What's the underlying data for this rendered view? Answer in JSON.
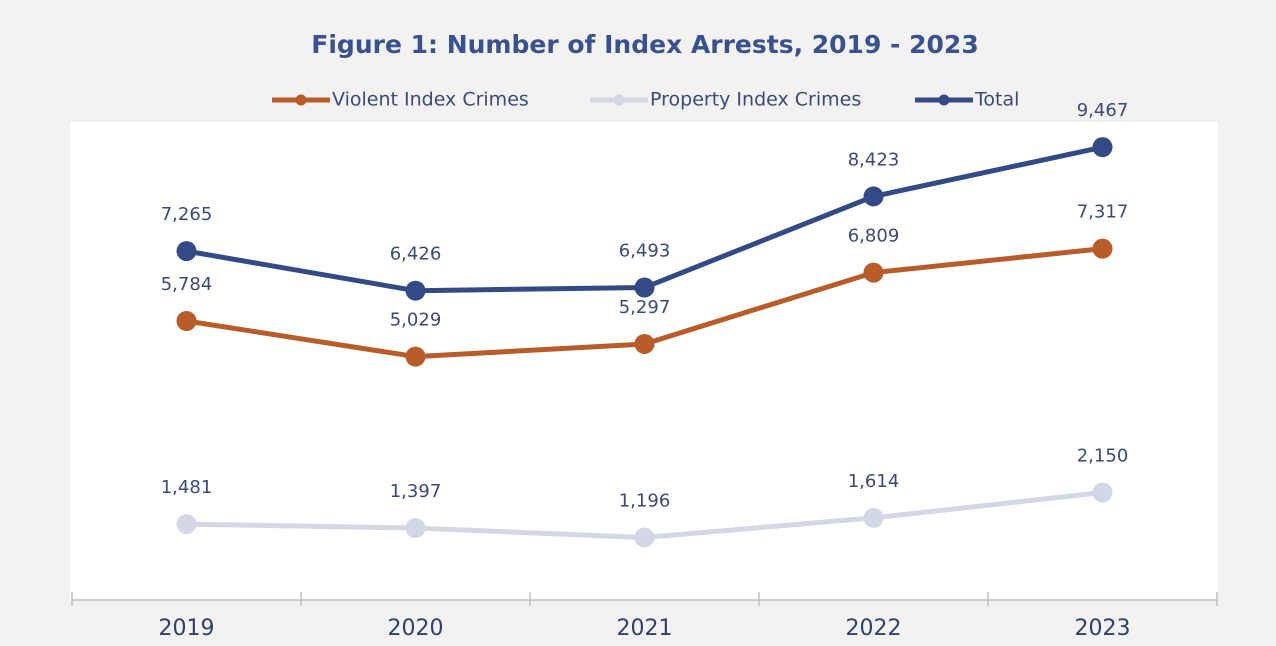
{
  "chart_data": {
    "type": "line",
    "title": "Figure 1: Number of Index Arrests, 2019 - 2023",
    "categories": [
      "2019",
      "2020",
      "2021",
      "2022",
      "2023"
    ],
    "series": [
      {
        "name": "Violent Index Crimes",
        "color": "#b85c2a",
        "values": [
          5784,
          5029,
          5297,
          6809,
          7317
        ],
        "value_labels": [
          "5,784",
          "5,029",
          "5,297",
          "6,809",
          "7,317"
        ]
      },
      {
        "name": "Property Index Crimes",
        "color": "#d3d8e6",
        "values": [
          1481,
          1397,
          1196,
          1614,
          2150
        ],
        "value_labels": [
          "1,481",
          "1,397",
          "1,196",
          "1,614",
          "2,150"
        ]
      },
      {
        "name": "Total",
        "color": "#344a84",
        "values": [
          7265,
          6426,
          6493,
          8423,
          9467
        ],
        "value_labels": [
          "7,265",
          "6,426",
          "6,493",
          "8,423",
          "9,467"
        ]
      }
    ],
    "ylim": [
      0,
      10000
    ],
    "legend": "top"
  }
}
